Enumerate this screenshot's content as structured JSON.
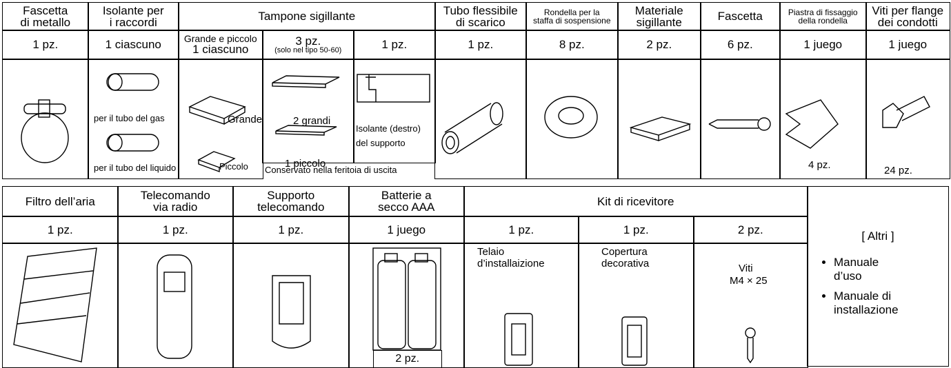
{
  "table1": {
    "headers": [
      [
        "Fascetta",
        "di metallo"
      ],
      [
        "Isolante per",
        "i raccordi"
      ],
      [
        "Tampone sigillante"
      ],
      [
        "Tubo flessibile",
        "di scarico"
      ],
      [
        "Rondella per la",
        "staffa di sospensione"
      ],
      [
        "Materiale",
        "sigillante"
      ],
      [
        "Fascetta"
      ],
      [
        "Piastra di fissaggio",
        "della rondella"
      ],
      [
        "Viti per flange",
        "dei condotti"
      ]
    ],
    "quantities": [
      [
        "1 pz."
      ],
      [
        "1 ciascuno"
      ],
      [
        "Grande e piccolo",
        "1 ciascuno"
      ],
      [
        "3 pz.",
        "(solo nel tipo 50-60)"
      ],
      [
        "1 pz."
      ],
      [
        "1 pz."
      ],
      [
        "8 pz."
      ],
      [
        "2 pz."
      ],
      [
        "6 pz."
      ],
      [
        "1 juego"
      ],
      [
        "1 juego"
      ]
    ],
    "captions": [
      "per il tubo del gas",
      "per il tubo del liquido",
      "Grande",
      "Piccolo",
      "2 grandi",
      "1 piccolo",
      "Isolante (destro)",
      "del supporto",
      "Conservato nella feritoia di uscita",
      "4 pz.",
      "24 pz."
    ]
  },
  "table2": {
    "headers": [
      [
        "Filtro dell’aria"
      ],
      [
        "Telecomando",
        "via radio"
      ],
      [
        "Supporto",
        "telecomando"
      ],
      [
        "Batterie a",
        "secco AAA"
      ],
      [
        "Kit di ricevitore"
      ]
    ],
    "quantities": [
      "1 pz.",
      "1 pz.",
      "1 pz.",
      "1 juego",
      "1 pz.",
      "1 pz.",
      "2 pz."
    ],
    "captions": [
      "2 pz.",
      "Telaio",
      "d’installaizione",
      "Copertura",
      "decorativa",
      "Viti",
      "M4 × 25"
    ],
    "others": {
      "title": "[ Altri ]",
      "items": [
        [
          "Manuale",
          "d’uso"
        ],
        [
          "Manuale di",
          "installazione"
        ]
      ]
    }
  }
}
